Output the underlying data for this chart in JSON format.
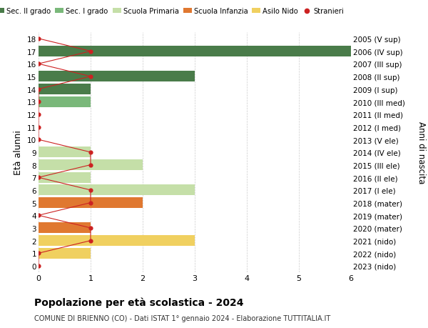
{
  "ages": [
    18,
    17,
    16,
    15,
    14,
    13,
    12,
    11,
    10,
    9,
    8,
    7,
    6,
    5,
    4,
    3,
    2,
    1,
    0
  ],
  "right_labels": [
    "2005 (V sup)",
    "2006 (IV sup)",
    "2007 (III sup)",
    "2008 (II sup)",
    "2009 (I sup)",
    "2010 (III med)",
    "2011 (II med)",
    "2012 (I med)",
    "2013 (V ele)",
    "2014 (IV ele)",
    "2015 (III ele)",
    "2016 (II ele)",
    "2017 (I ele)",
    "2018 (mater)",
    "2019 (mater)",
    "2020 (mater)",
    "2021 (nido)",
    "2022 (nido)",
    "2023 (nido)"
  ],
  "bar_values": [
    0,
    6,
    0,
    3,
    1,
    1,
    0,
    0,
    0,
    1,
    2,
    1,
    3,
    2,
    0,
    1,
    3,
    1,
    0
  ],
  "bar_colors": [
    "#4a7c4a",
    "#4a7c4a",
    "#4a7c4a",
    "#4a7c4a",
    "#4a7c4a",
    "#7ab87a",
    "#7ab87a",
    "#7ab87a",
    "#c5dfa8",
    "#c5dfa8",
    "#c5dfa8",
    "#c5dfa8",
    "#c5dfa8",
    "#e07830",
    "#e07830",
    "#e07830",
    "#f0d060",
    "#f0d060",
    "#f0d060"
  ],
  "stranieri_values": [
    0,
    1,
    0,
    1,
    0,
    0,
    0,
    0,
    0,
    1,
    1,
    0,
    1,
    1,
    0,
    1,
    1,
    0,
    0
  ],
  "stranieri_color": "#cc2222",
  "legend_entries": [
    {
      "label": "Sec. II grado",
      "color": "#4a7c4a"
    },
    {
      "label": "Sec. I grado",
      "color": "#7ab87a"
    },
    {
      "label": "Scuola Primaria",
      "color": "#c5dfa8"
    },
    {
      "label": "Scuola Infanzia",
      "color": "#e07830"
    },
    {
      "label": "Asilo Nido",
      "color": "#f0d060"
    },
    {
      "label": "Stranieri",
      "color": "#cc2222"
    }
  ],
  "ylabel_left": "Età alunni",
  "ylabel_right": "Anni di nascita",
  "title": "Popolazione per età scolastica - 2024",
  "subtitle": "COMUNE DI BRIENNO (CO) - Dati ISTAT 1° gennaio 2024 - Elaborazione TUTTITALIA.IT",
  "xlim": [
    0,
    6
  ],
  "ylim": [
    -0.5,
    18.5
  ],
  "background_color": "#ffffff",
  "grid_color": "#cccccc"
}
